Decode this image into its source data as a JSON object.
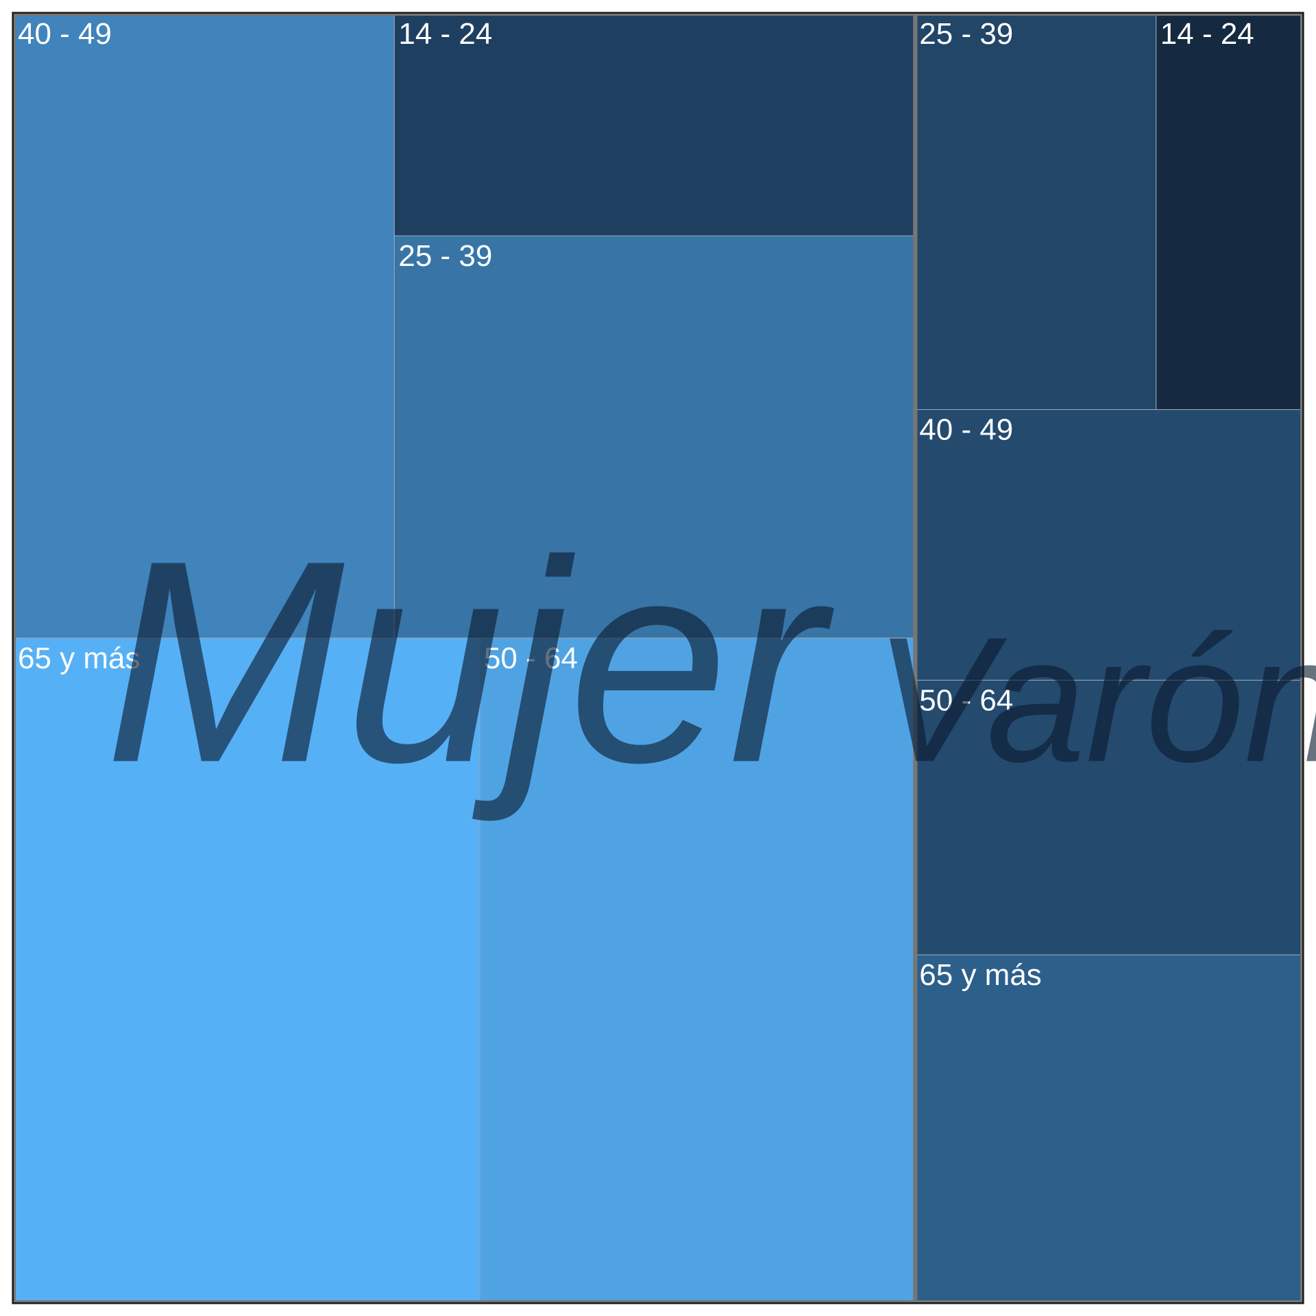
{
  "chart_data": {
    "type": "treemap",
    "title": "",
    "colors": {
      "Mujer": {
        "14 - 24": "#1f3f61",
        "25 - 39": "#3874a6",
        "40 - 49": "#4183bb",
        "50 - 64": "#50a3e3",
        "65 y más": "#56b0f6"
      },
      "Varón": {
        "14 - 24": "#152941",
        "25 - 39": "#214667",
        "40 - 49": "#244a6e",
        "50 - 64": "#244a6e",
        "65 y más": "#2d5f8b"
      }
    },
    "groups": [
      {
        "name": "Mujer",
        "items": [
          {
            "label": "40 - 49",
            "value": 15.2
          },
          {
            "label": "14 - 24",
            "value": 7.4
          },
          {
            "label": "25 - 39",
            "value": 13.4
          },
          {
            "label": "65 y más",
            "value": 19.8
          },
          {
            "label": "50 - 64",
            "value": 18.5
          }
        ]
      },
      {
        "name": "Varón",
        "items": [
          {
            "label": "25 - 39",
            "value": 6.1
          },
          {
            "label": "14 - 24",
            "value": 3.7
          },
          {
            "label": "40 - 49",
            "value": 6.7
          },
          {
            "label": "50 - 64",
            "value": 6.8
          },
          {
            "label": "65 y más",
            "value": 8.6
          }
        ]
      }
    ]
  }
}
